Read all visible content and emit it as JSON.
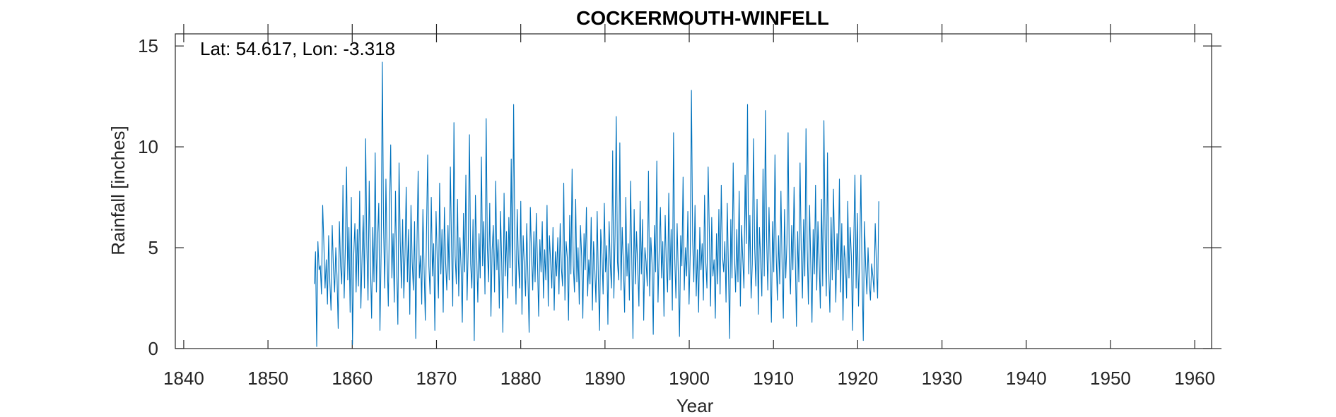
{
  "chart_data": {
    "type": "line",
    "title": "COCKERMOUTH-WINFELL",
    "annotation": "Lat: 54.617, Lon: -3.318",
    "xlabel": "Year",
    "ylabel": "Rainfall [inches]",
    "xlim": [
      1839,
      1962
    ],
    "ylim": [
      0,
      15.6
    ],
    "xticks": [
      1840,
      1850,
      1860,
      1870,
      1880,
      1890,
      1900,
      1910,
      1920,
      1930,
      1940,
      1950,
      1960
    ],
    "yticks": [
      0,
      5,
      10,
      15
    ],
    "grid": false,
    "box": true,
    "series": [
      {
        "color": "#0072bd",
        "x_start": 1855.5,
        "x_end": 1922.5,
        "values": [
          3.2,
          4.8,
          0.1,
          5.3,
          3.9,
          4.1,
          2.7,
          7.1,
          5.2,
          3.0,
          4.4,
          2.2,
          5.6,
          3.3,
          1.9,
          6.1,
          4.0,
          2.8,
          5.0,
          3.6,
          1.0,
          6.3,
          4.1,
          3.2,
          8.1,
          2.5,
          5.0,
          9.0,
          3.4,
          6.0,
          1.8,
          7.5,
          0.2,
          4.6,
          6.2,
          2.8,
          5.9,
          3.1,
          7.8,
          2.0,
          4.5,
          6.6,
          3.0,
          10.4,
          5.1,
          2.4,
          8.3,
          4.2,
          1.5,
          6.0,
          3.3,
          9.7,
          2.8,
          5.4,
          7.2,
          0.9,
          4.8,
          14.2,
          6.1,
          3.0,
          8.4,
          4.5,
          2.1,
          6.9,
          10.1,
          3.5,
          5.7,
          2.3,
          7.8,
          4.1,
          1.2,
          9.2,
          5.3,
          3.0,
          6.4,
          2.5,
          4.7,
          8.0,
          3.3,
          5.9,
          1.7,
          7.1,
          4.3,
          2.9,
          6.3,
          0.5,
          5.1,
          8.8,
          3.5,
          4.6,
          2.2,
          6.9,
          3.9,
          1.4,
          5.8,
          9.6,
          4.1,
          2.7,
          7.5,
          3.6,
          5.2,
          0.9,
          6.8,
          4.4,
          2.5,
          8.2,
          3.7,
          5.9,
          1.8,
          7.0,
          4.3,
          2.9,
          6.1,
          3.4,
          9.0,
          5.0,
          2.1,
          11.2,
          4.6,
          3.2,
          7.4,
          2.6,
          5.5,
          4.0,
          1.3,
          6.7,
          3.8,
          8.6,
          2.4,
          5.1,
          10.6,
          4.2,
          3.0,
          6.4,
          0.4,
          7.6,
          4.8,
          2.3,
          5.7,
          3.5,
          9.5,
          4.1,
          6.3,
          2.7,
          11.4,
          5.0,
          3.3,
          7.2,
          1.6,
          4.9,
          6.1,
          2.8,
          8.3,
          3.9,
          5.4,
          2.0,
          6.8,
          4.3,
          0.8,
          7.7,
          3.6,
          5.8,
          2.5,
          6.5,
          4.0,
          9.4,
          3.1,
          12.1,
          5.3,
          2.2,
          6.9,
          4.4,
          3.0,
          7.3,
          1.7,
          5.6,
          4.1,
          2.6,
          6.2,
          3.5,
          0.8,
          7.0,
          4.7,
          2.9,
          5.8,
          3.3,
          6.7,
          4.2,
          1.6,
          5.4,
          3.8,
          6.3,
          2.5,
          4.9,
          3.4,
          7.1,
          2.1,
          5.6,
          4.3,
          3.0,
          6.0,
          1.9,
          4.8,
          3.6,
          5.5,
          2.7,
          6.2,
          4.0,
          3.1,
          8.2,
          2.4,
          5.3,
          4.5,
          1.4,
          6.6,
          3.7,
          8.9,
          4.1,
          2.8,
          7.4,
          3.3,
          5.0,
          2.2,
          6.1,
          4.6,
          1.5,
          5.7,
          3.9,
          7.0,
          2.6,
          4.4,
          3.2,
          6.5,
          1.9,
          5.3,
          4.0,
          2.3,
          6.8,
          3.5,
          0.9,
          5.9,
          4.7,
          2.7,
          7.2,
          3.8,
          5.1,
          1.2,
          6.3,
          4.2,
          3.0,
          9.8,
          2.5,
          5.6,
          11.5,
          4.3,
          3.4,
          10.2,
          2.9,
          6.0,
          4.1,
          1.8,
          7.5,
          3.6,
          5.2,
          2.4,
          8.3,
          4.5,
          0.5,
          6.9,
          3.2,
          5.8,
          4.0,
          2.1,
          7.3,
          3.7,
          6.4,
          1.4,
          5.0,
          4.3,
          3.1,
          8.8,
          2.6,
          5.5,
          4.2,
          0.7,
          6.1,
          3.8,
          9.3,
          2.3,
          4.9,
          7.0,
          3.5,
          5.3,
          1.6,
          6.6,
          4.0,
          2.8,
          7.7,
          3.4,
          5.9,
          1.9,
          10.7,
          4.5,
          2.5,
          6.2,
          3.7,
          0.6,
          5.6,
          4.1,
          8.5,
          2.9,
          5.0,
          3.6,
          6.8,
          2.2,
          4.7,
          12.8,
          5.4,
          3.3,
          7.1,
          2.6,
          4.9,
          1.8,
          6.0,
          3.9,
          5.2,
          2.4,
          7.6,
          4.3,
          3.0,
          9.0,
          5.8,
          2.1,
          6.5,
          3.6,
          4.4,
          1.5,
          5.7,
          3.2,
          6.9,
          2.7,
          8.1,
          4.6,
          3.8,
          5.3,
          2.3,
          7.2,
          4.0,
          0.5,
          6.4,
          3.5,
          9.2,
          4.8,
          2.8,
          5.9,
          3.3,
          7.8,
          2.1,
          6.1,
          4.5,
          3.0,
          8.6,
          5.2,
          12.1,
          3.7,
          6.6,
          2.5,
          4.2,
          10.4,
          5.0,
          3.1,
          7.4,
          1.7,
          6.0,
          4.4,
          2.6,
          8.9,
          3.6,
          11.8,
          5.5,
          2.9,
          7.0,
          4.1,
          1.3,
          6.3,
          3.8,
          9.6,
          4.7,
          2.4,
          5.6,
          3.2,
          7.8,
          4.0,
          1.5,
          6.9,
          3.5,
          5.2,
          10.7,
          4.3,
          2.7,
          6.1,
          3.9,
          8.0,
          4.6,
          1.1,
          5.8,
          3.3,
          9.2,
          4.9,
          2.5,
          6.4,
          3.6,
          10.9,
          5.0,
          2.2,
          7.1,
          4.2,
          1.3,
          5.9,
          3.7,
          8.1,
          2.9,
          6.3,
          4.4,
          2.0,
          7.4,
          3.1,
          11.3,
          5.5,
          2.6,
          9.7,
          4.0,
          1.8,
          6.5,
          3.4,
          7.9,
          4.7,
          2.3,
          5.7,
          3.9,
          8.4,
          2.8,
          6.2,
          1.4,
          5.1,
          4.3,
          2.5,
          7.3,
          3.5,
          6.0,
          4.6,
          0.9,
          5.3,
          8.6,
          3.0,
          6.7,
          2.1,
          4.8,
          8.6,
          3.6,
          0.4,
          6.3,
          4.1,
          2.7,
          5.0,
          3.3,
          2.4,
          4.2,
          3.6,
          2.8,
          6.2,
          4.1,
          2.5,
          7.3
        ]
      }
    ]
  }
}
